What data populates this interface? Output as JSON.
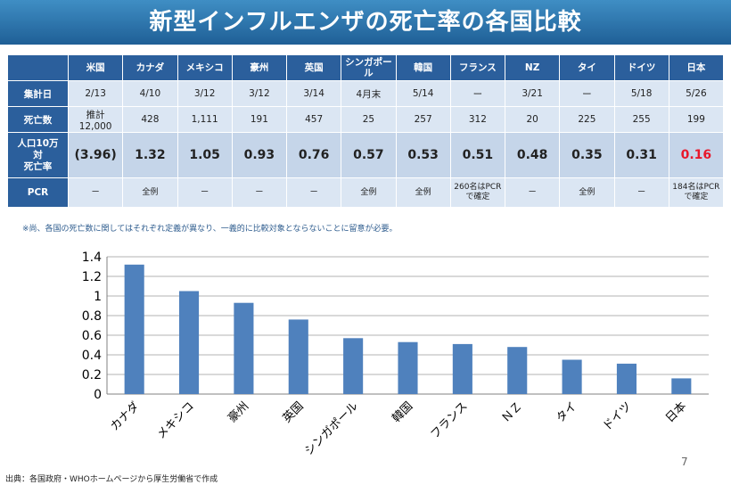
{
  "title": "新型インフルエンザの死亡率の各国比較",
  "table": {
    "countries": [
      "米国",
      "カナダ",
      "メキシコ",
      "豪州",
      "英国",
      "シンガポール",
      "韓国",
      "フランス",
      "NZ",
      "タイ",
      "ドイツ",
      "日本"
    ],
    "rows": [
      {
        "label": "集計日",
        "values": [
          "2/13",
          "4/10",
          "3/12",
          "3/12",
          "3/14",
          "4月末",
          "5/14",
          "ー",
          "3/21",
          "ー",
          "5/18",
          "5/26"
        ]
      },
      {
        "label": "死亡数",
        "values": [
          "推計\n12,000",
          "428",
          "1,111",
          "191",
          "457",
          "25",
          "257",
          "312",
          "20",
          "225",
          "255",
          "199"
        ]
      },
      {
        "label": "人口10万\n対\n死亡率",
        "values": [
          "(3.96)",
          "1.32",
          "1.05",
          "0.93",
          "0.76",
          "0.57",
          "0.53",
          "0.51",
          "0.48",
          "0.35",
          "0.31",
          "0.16"
        ]
      },
      {
        "label": "PCR",
        "values": [
          "ー",
          "全例",
          "ー",
          "ー",
          "ー",
          "全例",
          "全例",
          "260名はPCR\nで確定",
          "ー",
          "全例",
          "ー",
          "184名はPCR\nで確定"
        ]
      }
    ],
    "highlight_color": "#e8182b"
  },
  "note": "※尚、各国の死亡数に関してはそれぞれ定義が異なり、一義的に比較対象とならないことに留意が必要。",
  "chart_data": {
    "type": "bar",
    "categories": [
      "カナダ",
      "メキシコ",
      "豪州",
      "英国",
      "シンガポール",
      "韓国",
      "フランス",
      "ＮＺ",
      "タイ",
      "ドイツ",
      "日本"
    ],
    "values": [
      1.32,
      1.05,
      0.93,
      0.76,
      0.57,
      0.53,
      0.51,
      0.48,
      0.35,
      0.31,
      0.16
    ],
    "yticks": [
      "0",
      "0.2",
      "0.4",
      "0.6",
      "0.8",
      "1",
      "1.2",
      "1.4"
    ],
    "ylim": [
      0,
      1.4
    ],
    "grid": true,
    "legend": "none",
    "bar_color": "#4f81bd"
  },
  "source": "出典：各国政府・WHOホームページから厚生労働省で作成",
  "page_number": "7"
}
